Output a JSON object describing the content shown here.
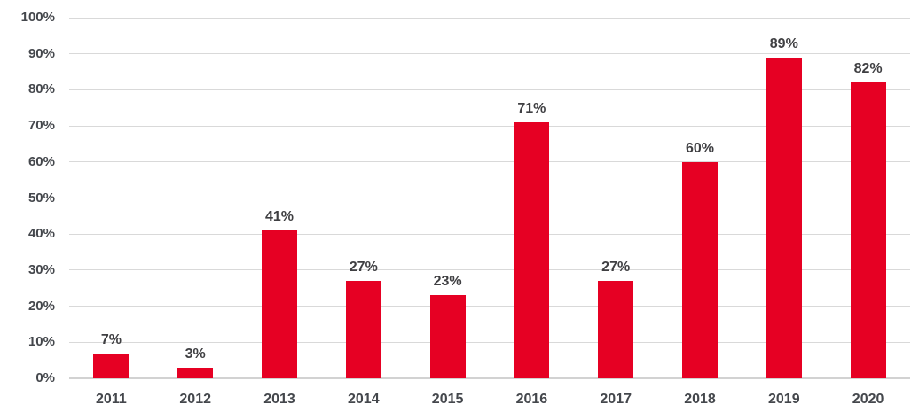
{
  "chart_data": {
    "type": "bar",
    "categories": [
      "2011",
      "2012",
      "2013",
      "2014",
      "2015",
      "2016",
      "2017",
      "2018",
      "2019",
      "2020"
    ],
    "values": [
      7,
      3,
      41,
      27,
      23,
      71,
      27,
      60,
      89,
      82
    ],
    "data_labels": [
      "7%",
      "3%",
      "41%",
      "27%",
      "23%",
      "71%",
      "27%",
      "60%",
      "89%",
      "82%"
    ],
    "title": "",
    "xlabel": "",
    "ylabel": "",
    "ylim": [
      0,
      100
    ],
    "ytick_step": 10,
    "ytick_labels": [
      "0%",
      "10%",
      "20%",
      "30%",
      "40%",
      "50%",
      "60%",
      "70%",
      "80%",
      "90%",
      "100%"
    ],
    "grid": true,
    "legend_position": "none",
    "colors": {
      "bar": "#e60023",
      "data_label": "#3f3f42",
      "tick_label": "#44474c",
      "gridline": "#d9d9d9",
      "baseline": "#d2d2d2",
      "background": "#ffffff"
    }
  }
}
